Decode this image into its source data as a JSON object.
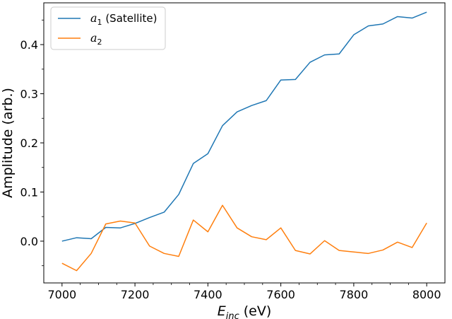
{
  "chart_data": {
    "type": "line",
    "xlabel": "E_inc (eV)",
    "xlabel_parts": {
      "main": "E",
      "sub": "inc",
      "unit": " (eV)"
    },
    "ylabel": "Amplitude (arb.)",
    "xlim": [
      6950,
      8050
    ],
    "ylim": [
      -0.085,
      0.485
    ],
    "xticks": [
      7000,
      7200,
      7400,
      7600,
      7800,
      8000
    ],
    "yticks": [
      0.0,
      0.1,
      0.2,
      0.3,
      0.4
    ],
    "ytick_labels": [
      "0.0",
      "0.1",
      "0.2",
      "0.3",
      "0.4"
    ],
    "legend_position": "top-left",
    "x": [
      7000,
      7040,
      7080,
      7120,
      7160,
      7200,
      7240,
      7280,
      7320,
      7360,
      7400,
      7440,
      7480,
      7520,
      7560,
      7600,
      7640,
      7680,
      7720,
      7760,
      7800,
      7840,
      7880,
      7920,
      7960,
      8000
    ],
    "series": [
      {
        "name": "a1 (Satellite)",
        "legend": {
          "var": "a",
          "sub": "1",
          "suffix": " (Satellite)"
        },
        "color": "#1f77b4",
        "values": [
          0.0,
          0.007,
          0.005,
          0.028,
          0.027,
          0.036,
          0.048,
          0.059,
          0.095,
          0.158,
          0.178,
          0.235,
          0.263,
          0.276,
          0.286,
          0.328,
          0.329,
          0.364,
          0.379,
          0.381,
          0.42,
          0.438,
          0.442,
          0.457,
          0.454,
          0.466
        ]
      },
      {
        "name": "a2",
        "legend": {
          "var": "a",
          "sub": "2",
          "suffix": ""
        },
        "color": "#ff7f0e",
        "values": [
          -0.045,
          -0.06,
          -0.025,
          0.035,
          0.041,
          0.037,
          -0.01,
          -0.025,
          -0.031,
          0.043,
          0.019,
          0.073,
          0.027,
          0.009,
          0.003,
          0.027,
          -0.019,
          -0.026,
          0.001,
          -0.019,
          -0.022,
          -0.025,
          -0.018,
          -0.002,
          -0.013,
          0.037
        ]
      }
    ]
  }
}
